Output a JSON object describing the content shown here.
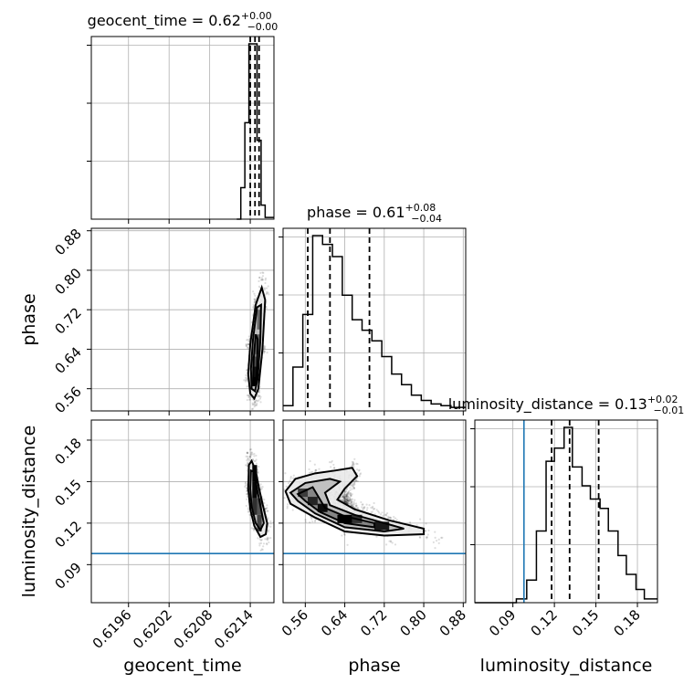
{
  "chart_data": {
    "type": "corner",
    "parameters": [
      "geocent_time",
      "phase",
      "luminosity_distance"
    ],
    "titles": {
      "geocent_time": {
        "name": "geocent_time",
        "median": "0.62",
        "upper": "+0.00",
        "lower": "−0.00"
      },
      "phase": {
        "name": "phase",
        "median": "0.61",
        "upper": "+0.08",
        "lower": "−0.04"
      },
      "luminosity_distance": {
        "name": "luminosity_distance",
        "median": "0.13",
        "upper": "+0.02",
        "lower": "−0.01"
      }
    },
    "ranges": {
      "geocent_time": [
        0.61905,
        0.62175
      ],
      "phase": [
        0.515,
        0.885
      ],
      "luminosity_distance": [
        0.0625,
        0.1945
      ]
    },
    "ticks": {
      "geocent_time": [
        0.6196,
        0.6202,
        0.6208,
        0.6214
      ],
      "phase": [
        0.56,
        0.64,
        0.72,
        0.8,
        0.88
      ],
      "luminosity_distance": [
        0.09,
        0.12,
        0.15,
        0.18
      ]
    },
    "tick_labels": {
      "geocent_time": [
        "0.6196",
        "0.6202",
        "0.6208",
        "0.6214"
      ],
      "phase": [
        "0.56",
        "0.64",
        "0.72",
        "0.80",
        "0.88"
      ],
      "luminosity_distance": [
        "0.09",
        "0.12",
        "0.15",
        "0.18"
      ]
    },
    "quantiles": {
      "geocent_time": [
        0.6214,
        0.62147,
        0.62153
      ],
      "phase": [
        0.565,
        0.61,
        0.69
      ],
      "luminosity_distance": [
        0.118,
        0.131,
        0.152
      ]
    },
    "truths": {
      "luminosity_distance": 0.098
    },
    "truth_color": "#1f77b4",
    "histograms": {
      "geocent_time": {
        "edges": [
          0.6212,
          0.62126,
          0.62132,
          0.62138,
          0.62144,
          0.6215,
          0.62156,
          0.62162,
          0.62175
        ],
        "counts": [
          0,
          0.18,
          0.55,
          1.0,
          1.0,
          0.45,
          0.08,
          0.01
        ]
      },
      "phase": {
        "edges": [
          0.515,
          0.535,
          0.555,
          0.575,
          0.595,
          0.615,
          0.635,
          0.655,
          0.675,
          0.695,
          0.715,
          0.735,
          0.755,
          0.775,
          0.795,
          0.815,
          0.835,
          0.855,
          0.885
        ],
        "counts": [
          0.03,
          0.25,
          0.55,
          1.0,
          0.95,
          0.88,
          0.66,
          0.52,
          0.46,
          0.4,
          0.31,
          0.21,
          0.15,
          0.09,
          0.06,
          0.04,
          0.03,
          0.02
        ]
      },
      "luminosity_distance": {
        "edges": [
          0.0625,
          0.0925,
          0.1,
          0.107,
          0.114,
          0.12,
          0.127,
          0.133,
          0.14,
          0.146,
          0.153,
          0.159,
          0.166,
          0.172,
          0.179,
          0.185,
          0.1945
        ],
        "counts": [
          0.0,
          0.02,
          0.12,
          0.38,
          0.75,
          0.82,
          0.93,
          0.72,
          0.62,
          0.55,
          0.5,
          0.38,
          0.25,
          0.15,
          0.07,
          0.02
        ]
      }
    },
    "contours": {
      "phase|geocent_time": [
        [
          [
            0.6214,
            0.55
          ],
          [
            0.62146,
            0.54
          ],
          [
            0.62152,
            0.56
          ],
          [
            0.62158,
            0.64
          ],
          [
            0.62162,
            0.74
          ],
          [
            0.62157,
            0.765
          ],
          [
            0.62148,
            0.73
          ],
          [
            0.6214,
            0.65
          ],
          [
            0.62137,
            0.59
          ]
        ],
        [
          [
            0.62142,
            0.56
          ],
          [
            0.62147,
            0.555
          ],
          [
            0.62151,
            0.58
          ],
          [
            0.62155,
            0.66
          ],
          [
            0.62156,
            0.73
          ],
          [
            0.6215,
            0.725
          ],
          [
            0.62144,
            0.66
          ],
          [
            0.62141,
            0.6
          ]
        ],
        [
          [
            0.62144,
            0.57
          ],
          [
            0.62148,
            0.57
          ],
          [
            0.6215,
            0.6
          ],
          [
            0.62151,
            0.66
          ],
          [
            0.62148,
            0.67
          ],
          [
            0.62145,
            0.62
          ]
        ]
      ],
      "luminosity_distance|geocent_time": [
        [
          [
            0.62138,
            0.162
          ],
          [
            0.62142,
            0.165
          ],
          [
            0.62148,
            0.158
          ],
          [
            0.62153,
            0.145
          ],
          [
            0.6216,
            0.13
          ],
          [
            0.62165,
            0.12
          ],
          [
            0.62163,
            0.112
          ],
          [
            0.62155,
            0.11
          ],
          [
            0.62146,
            0.118
          ],
          [
            0.6214,
            0.13
          ],
          [
            0.62137,
            0.145
          ]
        ],
        [
          [
            0.62141,
            0.158
          ],
          [
            0.62146,
            0.157
          ],
          [
            0.6215,
            0.145
          ],
          [
            0.62156,
            0.13
          ],
          [
            0.6216,
            0.12
          ],
          [
            0.62155,
            0.115
          ],
          [
            0.62148,
            0.12
          ],
          [
            0.62142,
            0.132
          ],
          [
            0.6214,
            0.145
          ]
        ]
      ],
      "luminosity_distance|phase": [
        [
          [
            0.52,
            0.143
          ],
          [
            0.54,
            0.152
          ],
          [
            0.58,
            0.156
          ],
          [
            0.62,
            0.158
          ],
          [
            0.655,
            0.16
          ],
          [
            0.665,
            0.154
          ],
          [
            0.64,
            0.145
          ],
          [
            0.625,
            0.137
          ],
          [
            0.66,
            0.13
          ],
          [
            0.73,
            0.122
          ],
          [
            0.8,
            0.116
          ],
          [
            0.8,
            0.112
          ],
          [
            0.72,
            0.111
          ],
          [
            0.64,
            0.114
          ],
          [
            0.58,
            0.124
          ],
          [
            0.53,
            0.134
          ]
        ],
        [
          [
            0.53,
            0.142
          ],
          [
            0.56,
            0.149
          ],
          [
            0.61,
            0.152
          ],
          [
            0.63,
            0.15
          ],
          [
            0.6,
            0.142
          ],
          [
            0.61,
            0.133
          ],
          [
            0.66,
            0.126
          ],
          [
            0.73,
            0.119
          ],
          [
            0.76,
            0.116
          ],
          [
            0.72,
            0.114
          ],
          [
            0.64,
            0.117
          ],
          [
            0.58,
            0.127
          ],
          [
            0.545,
            0.136
          ]
        ],
        [
          [
            0.545,
            0.141
          ],
          [
            0.575,
            0.146
          ],
          [
            0.585,
            0.14
          ],
          [
            0.6,
            0.131
          ],
          [
            0.64,
            0.125
          ],
          [
            0.7,
            0.12
          ],
          [
            0.7,
            0.117
          ],
          [
            0.64,
            0.12
          ],
          [
            0.59,
            0.128
          ],
          [
            0.56,
            0.136
          ]
        ]
      ]
    },
    "dense_bins": {
      "phase|geocent_time": [
        {
          "x": 0.62143,
          "y": 0.565,
          "w": 7e-05,
          "h": 0.02,
          "d": 1.0
        },
        {
          "x": 0.62143,
          "y": 0.585,
          "w": 7e-05,
          "h": 0.02,
          "d": 0.85
        },
        {
          "x": 0.62143,
          "y": 0.605,
          "w": 7e-05,
          "h": 0.02,
          "d": 0.35
        },
        {
          "x": 0.62147,
          "y": 0.63,
          "w": 7e-05,
          "h": 0.04,
          "d": 0.2
        },
        {
          "x": 0.6215,
          "y": 0.68,
          "w": 5e-05,
          "h": 0.04,
          "d": 0.12
        }
      ],
      "luminosity_distance|geocent_time": [
        {
          "x": 0.62143,
          "y": 0.15,
          "w": 7e-05,
          "h": 0.012,
          "d": 1.0
        },
        {
          "x": 0.62143,
          "y": 0.138,
          "w": 7e-05,
          "h": 0.012,
          "d": 0.95
        },
        {
          "x": 0.62143,
          "y": 0.126,
          "w": 7e-05,
          "h": 0.012,
          "d": 0.6
        },
        {
          "x": 0.6215,
          "y": 0.126,
          "w": 7e-05,
          "h": 0.012,
          "d": 0.3
        },
        {
          "x": 0.6215,
          "y": 0.114,
          "w": 7e-05,
          "h": 0.012,
          "d": 0.45
        }
      ],
      "luminosity_distance|phase": [
        {
          "x": 0.545,
          "y": 0.139,
          "w": 0.02,
          "h": 0.006,
          "d": 0.5
        },
        {
          "x": 0.565,
          "y": 0.133,
          "w": 0.02,
          "h": 0.006,
          "d": 0.7
        },
        {
          "x": 0.585,
          "y": 0.128,
          "w": 0.02,
          "h": 0.006,
          "d": 0.9
        },
        {
          "x": 0.625,
          "y": 0.12,
          "w": 0.03,
          "h": 0.006,
          "d": 1.0
        },
        {
          "x": 0.655,
          "y": 0.12,
          "w": 0.02,
          "h": 0.006,
          "d": 0.6
        },
        {
          "x": 0.7,
          "y": 0.115,
          "w": 0.03,
          "h": 0.006,
          "d": 0.8
        }
      ]
    }
  }
}
